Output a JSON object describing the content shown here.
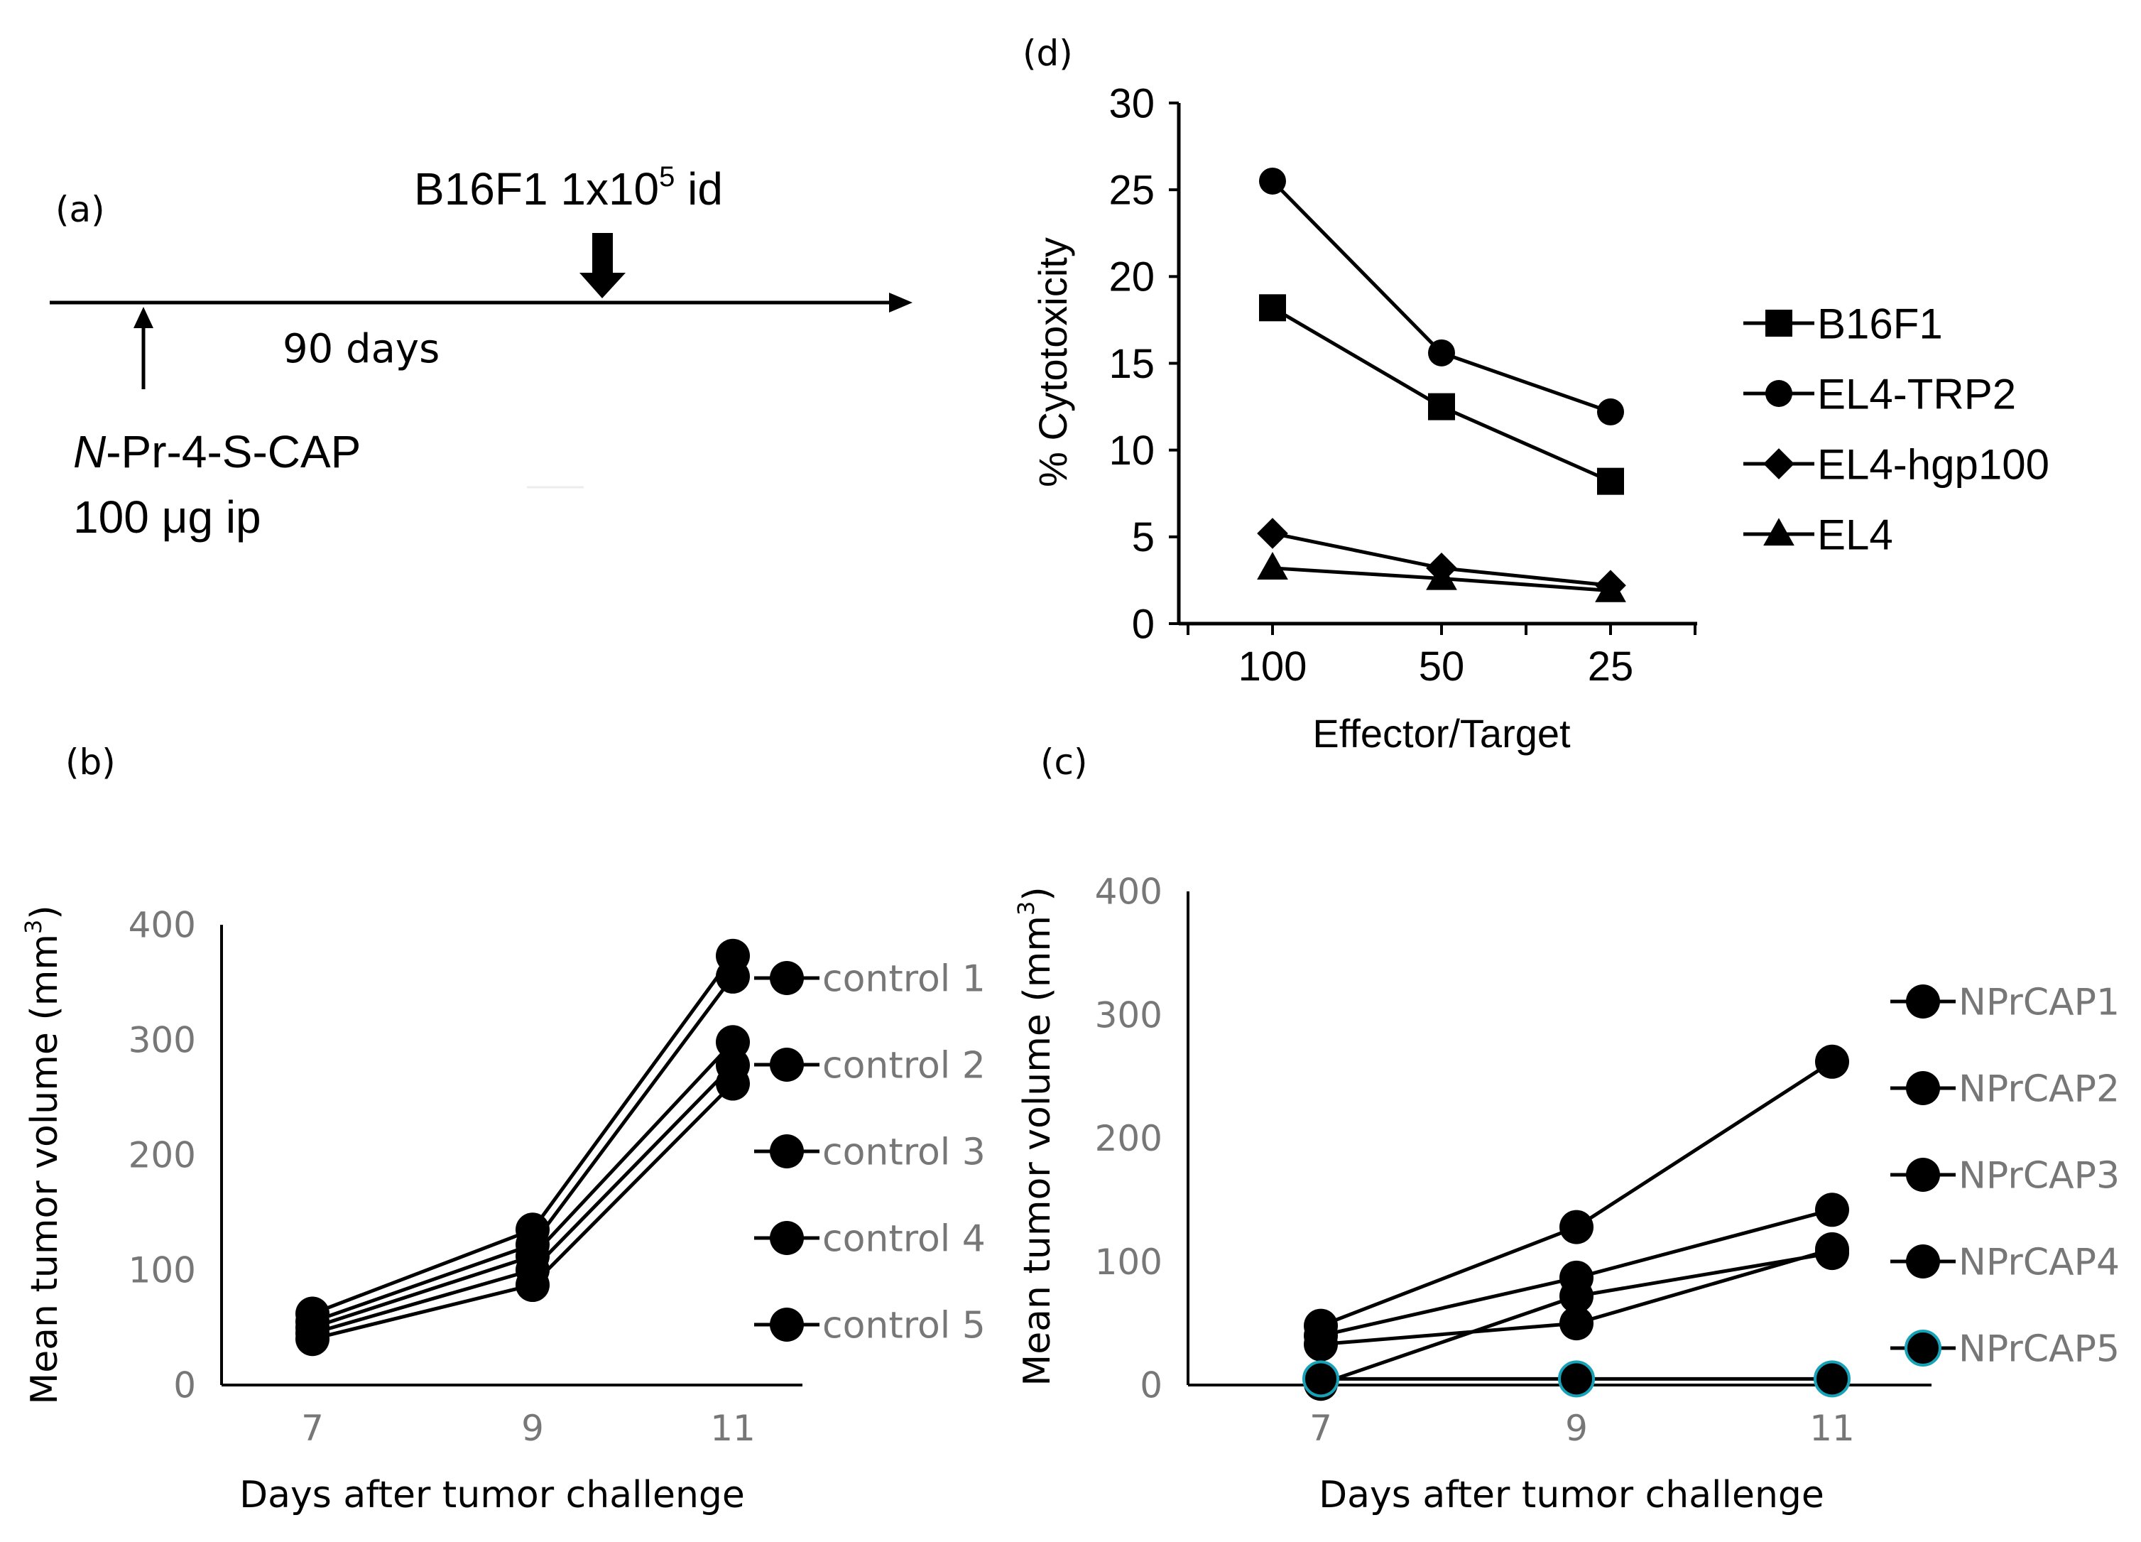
{
  "panel_a": {
    "label": "(a)",
    "event_label": "B16F1 1x10",
    "event_label_sup": "5",
    "event_label_suffix": " id",
    "interval_label": "90 days",
    "drug_label_italic": "N",
    "drug_label_rest": "-Pr-4-S-CAP",
    "dose_label": "100 μg  ip"
  },
  "chart_data": [
    {
      "id": "d",
      "panel_label": "(d)",
      "type": "line",
      "categories": [
        "100",
        "50",
        "25"
      ],
      "ylabel": "% Cytotoxicity",
      "xlabel": "Effector/Target",
      "ylim": [
        0,
        30
      ],
      "yticks": [
        "0",
        "5",
        "10",
        "15",
        "20",
        "25",
        "30"
      ],
      "legend_position": "right",
      "series": [
        {
          "name": "B16F1",
          "marker": "square",
          "values": [
            18.2,
            12.5,
            8.2
          ]
        },
        {
          "name": "EL4-TRP2",
          "marker": "circle",
          "values": [
            25.5,
            15.6,
            12.2
          ]
        },
        {
          "name": "EL4-hgp100",
          "marker": "diamond",
          "values": [
            5.2,
            3.2,
            2.2
          ]
        },
        {
          "name": "EL4",
          "marker": "triangle",
          "values": [
            3.2,
            2.6,
            1.9
          ]
        }
      ]
    },
    {
      "id": "b",
      "panel_label": "(b)",
      "type": "line",
      "categories": [
        "7",
        "9",
        "11"
      ],
      "ylabel": "Mean tumor volume (mm",
      "ylabel_sup": "3",
      "ylabel_end": ")",
      "xlabel": "Days after tumor challenge",
      "ylim": [
        0,
        400
      ],
      "yticks": [
        "0",
        "100",
        "200",
        "300",
        "400"
      ],
      "legend_position": "right",
      "series": [
        {
          "name": "control 1",
          "color": "#000000",
          "values": [
            62,
            135,
            373
          ]
        },
        {
          "name": "control 2",
          "color": "#000000",
          "values": [
            55,
            122,
            355
          ]
        },
        {
          "name": "control 3",
          "color": "#000000",
          "values": [
            50,
            112,
            298
          ]
        },
        {
          "name": "control 4",
          "color": "#000000",
          "values": [
            45,
            100,
            278
          ]
        },
        {
          "name": "control 5",
          "color": "#000000",
          "values": [
            40,
            87,
            262
          ]
        }
      ]
    },
    {
      "id": "c",
      "panel_label": "(c)",
      "type": "line",
      "categories": [
        "7",
        "9",
        "11"
      ],
      "ylabel": "Mean tumor volume (mm",
      "ylabel_sup": "3",
      "ylabel_end": ")",
      "xlabel": "Days after tumor challenge",
      "ylim": [
        0,
        400
      ],
      "yticks": [
        "0",
        "100",
        "200",
        "300",
        "400"
      ],
      "legend_position": "right",
      "series": [
        {
          "name": "NPrCAP1",
          "color": "#000000",
          "values": [
            48,
            128,
            262
          ]
        },
        {
          "name": "NPrCAP2",
          "color": "#000000",
          "values": [
            40,
            87,
            142
          ]
        },
        {
          "name": "NPrCAP3",
          "color": "#000000",
          "values": [
            33,
            50,
            110
          ]
        },
        {
          "name": "NPrCAP4",
          "color": "#000000",
          "values": [
            1,
            72,
            107
          ]
        },
        {
          "name": "NPrCAP5",
          "color": "#000000",
          "edge": "#17a2b8",
          "values": [
            5,
            5,
            5
          ]
        }
      ]
    }
  ]
}
